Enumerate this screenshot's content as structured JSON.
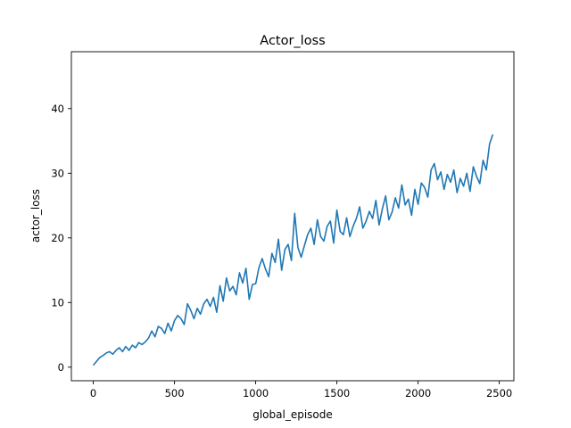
{
  "chart_data": {
    "type": "line",
    "title": "Actor_loss",
    "xlabel": "global_episode",
    "ylabel": "actor_loss",
    "xlim": [
      -135,
      2590
    ],
    "ylim": [
      -2.1,
      48.8
    ],
    "x_ticks": [
      0,
      500,
      1000,
      1500,
      2000,
      2500
    ],
    "y_ticks": [
      0,
      10,
      20,
      30,
      40
    ],
    "x_tick_labels": [
      "0",
      "500",
      "1000",
      "1500",
      "2000",
      "2500"
    ],
    "y_tick_labels": [
      "0",
      "10",
      "20",
      "30",
      "40"
    ],
    "grid": false,
    "legend": "none",
    "series": [
      {
        "color": "#1f77b4",
        "x": [
          0,
          20,
          40,
          60,
          80,
          100,
          120,
          140,
          160,
          180,
          200,
          220,
          240,
          260,
          280,
          300,
          320,
          340,
          360,
          380,
          400,
          420,
          440,
          460,
          480,
          500,
          520,
          540,
          560,
          580,
          600,
          620,
          640,
          660,
          680,
          700,
          720,
          740,
          760,
          780,
          800,
          820,
          840,
          860,
          880,
          900,
          920,
          940,
          960,
          980,
          1000,
          1020,
          1040,
          1060,
          1080,
          1100,
          1120,
          1140,
          1160,
          1180,
          1200,
          1220,
          1240,
          1260,
          1280,
          1300,
          1320,
          1340,
          1360,
          1380,
          1400,
          1420,
          1440,
          1460,
          1480,
          1500,
          1520,
          1540,
          1560,
          1580,
          1600,
          1620,
          1640,
          1660,
          1680,
          1700,
          1720,
          1740,
          1760,
          1780,
          1800,
          1820,
          1840,
          1860,
          1880,
          1900,
          1920,
          1940,
          1960,
          1980,
          2000,
          2020,
          2040,
          2060,
          2080,
          2100,
          2120,
          2140,
          2160,
          2180,
          2200,
          2220,
          2240,
          2260,
          2280,
          2300,
          2320,
          2340,
          2360,
          2380,
          2400,
          2420,
          2440,
          2460
        ],
        "y": [
          0.3,
          0.9,
          1.5,
          1.8,
          2.2,
          2.4,
          2.0,
          2.6,
          3.0,
          2.4,
          3.2,
          2.6,
          3.4,
          3.0,
          3.8,
          3.5,
          3.9,
          4.5,
          5.6,
          4.7,
          6.3,
          6.0,
          5.2,
          6.8,
          5.6,
          7.2,
          8.0,
          7.5,
          6.6,
          9.8,
          8.8,
          7.5,
          9.1,
          8.2,
          9.8,
          10.5,
          9.4,
          10.8,
          8.5,
          12.6,
          10.2,
          13.8,
          11.8,
          12.5,
          11.2,
          14.6,
          13.0,
          15.3,
          10.5,
          12.8,
          12.9,
          15.4,
          16.8,
          15.2,
          14.0,
          17.6,
          16.2,
          19.8,
          15.0,
          18.2,
          19.0,
          16.5,
          23.8,
          18.5,
          17.0,
          18.8,
          20.5,
          21.5,
          19.0,
          22.8,
          20.2,
          19.5,
          21.8,
          22.6,
          19.2,
          24.3,
          21.0,
          20.5,
          23.1,
          20.2,
          21.8,
          23.0,
          24.8,
          21.5,
          22.6,
          24.1,
          23.0,
          25.8,
          22.0,
          24.5,
          26.5,
          22.8,
          24.0,
          26.2,
          24.6,
          28.2,
          25.1,
          26.0,
          23.5,
          27.5,
          25.2,
          28.5,
          27.8,
          26.3,
          30.5,
          31.5,
          29.0,
          30.2,
          27.5,
          29.8,
          28.6,
          30.5,
          27.0,
          29.2,
          28.0,
          30.0,
          27.2,
          31.0,
          29.5,
          28.4,
          32.0,
          30.5,
          34.5,
          36.0
        ]
      }
    ]
  }
}
